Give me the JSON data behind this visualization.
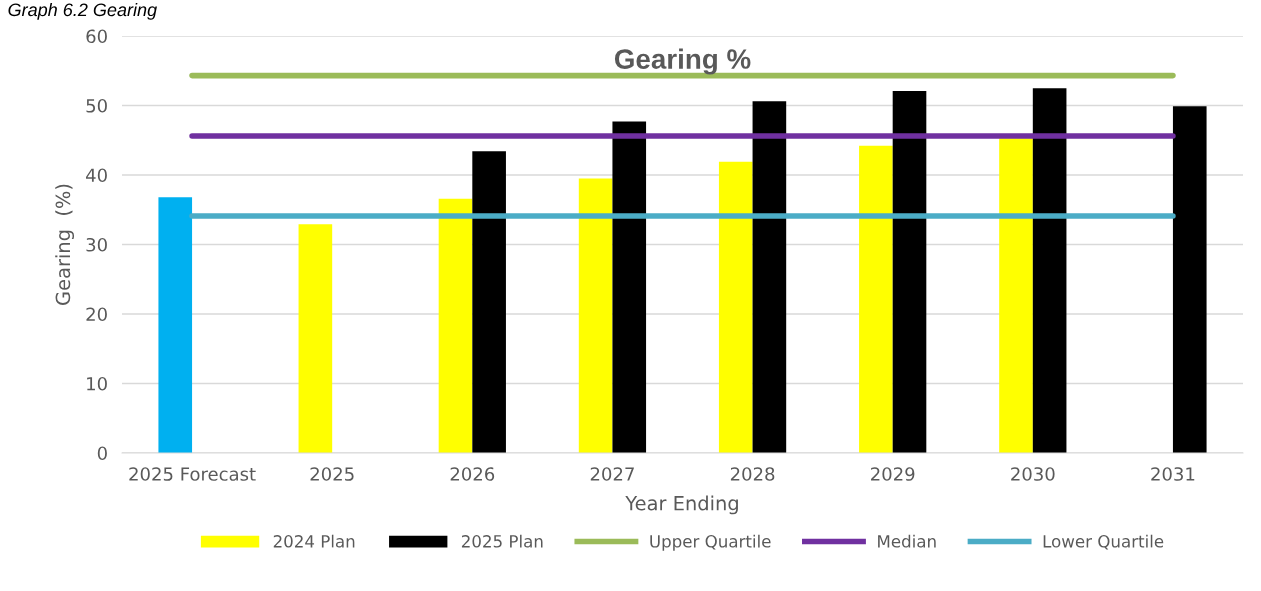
{
  "chart_data": {
    "type": "bar",
    "title": "Gearing %",
    "xlabel": "Year Ending",
    "ylabel": "Gearing  (%)",
    "annotations": [
      "Graph 6.2 Gearing"
    ],
    "categories": [
      "2025 Forecast",
      "2025",
      "2026",
      "2027",
      "2028",
      "2029",
      "2030",
      "2031"
    ],
    "series": [
      {
        "name": "2024 Plan",
        "color": "#ffff00",
        "colors": [
          "#00b0f0",
          "#ffff00",
          "#ffff00",
          "#ffff00",
          "#ffff00",
          "#ffff00",
          "#ffff00",
          "#ffff00"
        ],
        "values": [
          36.8,
          32.9,
          36.6,
          39.5,
          41.9,
          44.2,
          45.3,
          null
        ]
      },
      {
        "name": "2025 Plan",
        "color": "#000000",
        "values": [
          null,
          null,
          43.4,
          47.7,
          50.6,
          52.1,
          52.5,
          49.9
        ]
      },
      {
        "name": "Upper Quartile",
        "type": "line",
        "color": "#9bbb59",
        "values": [
          54.3,
          54.3,
          54.3,
          54.3,
          54.3,
          54.3,
          54.3,
          54.3
        ]
      },
      {
        "name": "Median",
        "type": "line",
        "color": "#7030a0",
        "values": [
          45.6,
          45.6,
          45.6,
          45.6,
          45.6,
          45.6,
          45.6,
          45.6
        ]
      },
      {
        "name": "Lower Quartile",
        "type": "line",
        "color": "#4bacc6",
        "values": [
          34.1,
          34.1,
          34.1,
          34.1,
          34.1,
          34.1,
          34.1,
          34.1
        ]
      }
    ],
    "ylim": [
      0,
      60
    ],
    "yticks": [
      0,
      10,
      20,
      30,
      40,
      50,
      60
    ],
    "grid": "y",
    "legend": "bottom",
    "marker": "none"
  }
}
